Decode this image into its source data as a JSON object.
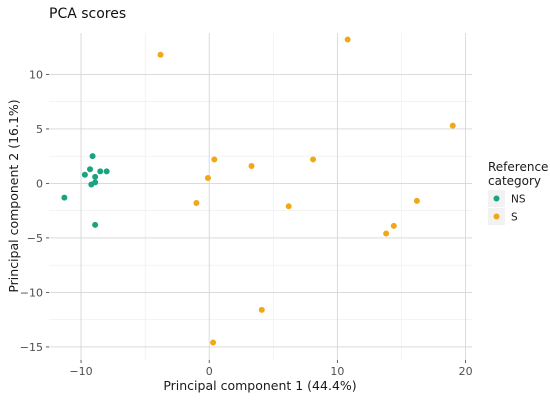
{
  "chart_data": {
    "type": "scatter",
    "title": "PCA scores",
    "xlabel": "Principal component 1 (44.4%)",
    "ylabel": "Principal component 2 (16.1%)",
    "xlim": [
      -12.5,
      20.5
    ],
    "ylim": [
      -16.2,
      13.8
    ],
    "x_ticks": [
      -10,
      0,
      10,
      20
    ],
    "y_ticks": [
      -15,
      -10,
      -5,
      0,
      5,
      10
    ],
    "x_tick_labels": [
      "−10",
      "0",
      "10",
      "20"
    ],
    "y_tick_labels": [
      "−15",
      "−10",
      "−5",
      "0",
      "5",
      "10"
    ],
    "grid": true,
    "legend": {
      "title_lines": [
        "Reference",
        "category"
      ],
      "placement": "right"
    },
    "series": [
      {
        "name": "NS",
        "color": "#1aa381",
        "points": [
          [
            -11.3,
            -1.3
          ],
          [
            -9.1,
            2.5
          ],
          [
            -9.3,
            1.3
          ],
          [
            -9.7,
            0.8
          ],
          [
            -8.9,
            0.6
          ],
          [
            -9.2,
            -0.1
          ],
          [
            -8.9,
            0.1
          ],
          [
            -8.5,
            1.1
          ],
          [
            -8.0,
            1.1
          ],
          [
            -8.9,
            -3.8
          ]
        ]
      },
      {
        "name": "S",
        "color": "#f0a817",
        "points": [
          [
            -3.8,
            11.8
          ],
          [
            10.8,
            13.2
          ],
          [
            19.0,
            5.3
          ],
          [
            0.4,
            2.2
          ],
          [
            3.3,
            1.6
          ],
          [
            8.1,
            2.2
          ],
          [
            -0.1,
            0.5
          ],
          [
            -1.0,
            -1.8
          ],
          [
            6.2,
            -2.1
          ],
          [
            16.2,
            -1.6
          ],
          [
            14.4,
            -3.9
          ],
          [
            13.8,
            -4.6
          ],
          [
            4.1,
            -11.6
          ],
          [
            0.3,
            -14.6
          ]
        ]
      }
    ]
  }
}
